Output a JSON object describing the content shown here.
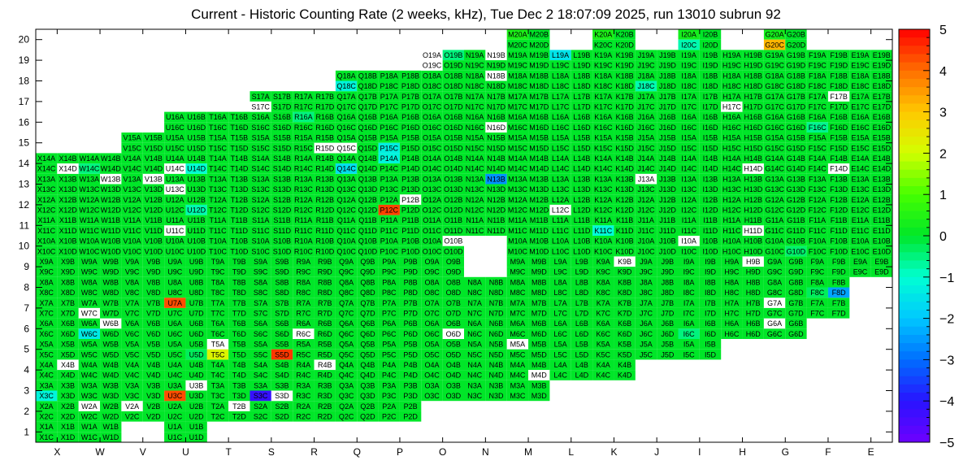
{
  "chart_data": {
    "type": "heatmap",
    "title": "Current - Historic Counting Rate (2 weeks, kHz), Tue Dec  2 18:07:09 2025, run 13010 subrun 92",
    "x_labels": [
      "X",
      "W",
      "V",
      "U",
      "T",
      "S",
      "R",
      "Q",
      "P",
      "O",
      "N",
      "M",
      "L",
      "K",
      "J",
      "I",
      "H",
      "G",
      "F",
      "E"
    ],
    "y_labels": [
      "1",
      "2",
      "3",
      "4",
      "5",
      "6",
      "7",
      "8",
      "9",
      "10",
      "11",
      "12",
      "13",
      "14",
      "15",
      "16",
      "17",
      "18",
      "19",
      "20"
    ],
    "zlim": [
      -5,
      5
    ],
    "color_scale_labels": [
      "5",
      "4",
      "3",
      "2",
      "1",
      "0",
      "−1",
      "−2",
      "−3",
      "−4",
      "−5"
    ],
    "default_value": 0,
    "rows": {
      "1": [
        0,
        1,
        3
      ],
      "2": [
        0,
        1,
        2,
        3,
        4,
        5,
        6,
        7,
        8
      ],
      "3": [
        0,
        1,
        2,
        3,
        4,
        5,
        6,
        7,
        8,
        9,
        10,
        11
      ],
      "4": [
        0,
        1,
        2,
        3,
        4,
        5,
        6,
        7,
        8,
        9,
        10,
        11,
        12,
        13
      ],
      "5": [
        0,
        1,
        2,
        3,
        4,
        5,
        6,
        7,
        8,
        9,
        10,
        11,
        12,
        13,
        14,
        15
      ],
      "6": [
        0,
        1,
        2,
        3,
        4,
        5,
        6,
        7,
        8,
        9,
        10,
        11,
        12,
        13,
        14,
        15,
        16,
        17
      ],
      "7": [
        0,
        1,
        2,
        3,
        4,
        5,
        6,
        7,
        8,
        9,
        10,
        11,
        12,
        13,
        14,
        15,
        16,
        17,
        18
      ],
      "8": [
        0,
        1,
        2,
        3,
        4,
        5,
        6,
        7,
        8,
        9,
        10,
        11,
        12,
        13,
        14,
        15,
        16,
        17,
        18
      ],
      "9": [
        0,
        1,
        2,
        3,
        4,
        5,
        6,
        7,
        8,
        9,
        11,
        12,
        13,
        14,
        15,
        16,
        17,
        18,
        19
      ],
      "10": [
        0,
        1,
        2,
        3,
        4,
        5,
        6,
        7,
        8,
        9,
        11,
        12,
        13,
        14,
        15,
        16,
        17,
        18,
        19
      ],
      "11": [
        0,
        1,
        2,
        3,
        4,
        5,
        6,
        7,
        8,
        9,
        10,
        11,
        12,
        13,
        14,
        15,
        16,
        17,
        18,
        19
      ],
      "12": [
        0,
        1,
        2,
        3,
        4,
        5,
        6,
        7,
        8,
        9,
        10,
        11,
        12,
        13,
        14,
        15,
        16,
        17,
        18,
        19
      ],
      "13": [
        0,
        1,
        2,
        3,
        4,
        5,
        6,
        7,
        8,
        9,
        10,
        11,
        12,
        13,
        14,
        15,
        16,
        17,
        18,
        19
      ],
      "14": [
        0,
        1,
        2,
        3,
        4,
        5,
        6,
        7,
        8,
        9,
        10,
        11,
        12,
        13,
        14,
        15,
        16,
        17,
        18,
        19
      ],
      "15": [
        2,
        3,
        4,
        5,
        6,
        7,
        8,
        9,
        10,
        11,
        12,
        13,
        14,
        15,
        16,
        17,
        18,
        19
      ],
      "16": [
        3,
        4,
        5,
        6,
        7,
        8,
        9,
        10,
        11,
        12,
        13,
        14,
        15,
        16,
        17,
        18,
        19
      ],
      "17": [
        5,
        6,
        7,
        8,
        9,
        10,
        11,
        12,
        13,
        14,
        15,
        16,
        17,
        18,
        19
      ],
      "18": [
        7,
        8,
        9,
        10,
        11,
        12,
        13,
        14,
        15,
        16,
        17,
        18,
        19
      ],
      "19": [
        9,
        10,
        11,
        12,
        13,
        14,
        15,
        16,
        17,
        18,
        19
      ],
      "20": [
        11,
        13,
        15,
        17
      ]
    },
    "special_values": {
      "U7A": 4.3,
      "U3C": 4.3,
      "P12C": 4.4,
      "S5D": 4.5,
      "G20C": 3.2,
      "T5C": 2.2,
      "X4B": 0,
      "W7C": 0,
      "W6B": 0,
      "W2A": 0,
      "V2A": 0,
      "U3B": 0,
      "T5A": 0,
      "T2B": 0,
      "S3D": 0,
      "R6C": 0,
      "R4B": 0,
      "R15D": 0,
      "Q15C": 0,
      "O10B": 0,
      "O6D": 0,
      "N16D": 0,
      "M5A": 0,
      "M4D": 0,
      "L12C": 0,
      "K9B": 0,
      "J13A": 0,
      "I10A": 0,
      "H17C": 0,
      "H9B": 0,
      "H14D": 0,
      "H11D": 0,
      "G7A": 0,
      "G6A": 0,
      "F17B": 0,
      "F14D": 0,
      "V13B": 0,
      "W13B": 0,
      "S17C": 0,
      "U11C": 0,
      "U13C": 0,
      "U14C": 0,
      "X14D": 0,
      "N19B": 0,
      "N18B": 0,
      "O19A": 0,
      "O19C": 0,
      "P12B": 0,
      "S3C": -4.2,
      "N13B": -2.6,
      "F8D": -2.4,
      "X3C": -1.2,
      "W6C": -1.4,
      "Q14C": -1.6,
      "P15C": -1.3,
      "P14A": -1.2,
      "Q18C": -1.2,
      "L19A": -1.5,
      "J18C": -0.8,
      "K11C": -1.1,
      "I20C": -0.8,
      "U14D": -1.0,
      "U12D": -0.8,
      "W14C": -0.5,
      "F16C": -0.6,
      "G10D": -0.4,
      "I6C": -0.5,
      "U5D": -0.3,
      "O19B": -0.5,
      "R16A": -0.5,
      "F8C": -0.3,
      "I20A": 0.3,
      "K20A": 0.4,
      "M20A": 0.4,
      "G20A": 0.3
    },
    "inactive_labels": [
      "X4B",
      "W7C",
      "W6B",
      "W2A",
      "V2A",
      "U3B",
      "T5A",
      "T2B",
      "S3D",
      "R6C",
      "R4B",
      "R15D",
      "Q15C",
      "O10B",
      "O6D",
      "N16D",
      "M5A",
      "M4D",
      "L12C",
      "K9B",
      "J13A",
      "I10A",
      "H17C",
      "H9B",
      "H14D",
      "H11D",
      "G7A",
      "G6A",
      "F17B",
      "F14D",
      "V13B",
      "W13B",
      "S17C",
      "U11C",
      "U13C",
      "U14C",
      "X14D",
      "N19B",
      "N18B",
      "O19A",
      "O19C",
      "P12B"
    ]
  }
}
